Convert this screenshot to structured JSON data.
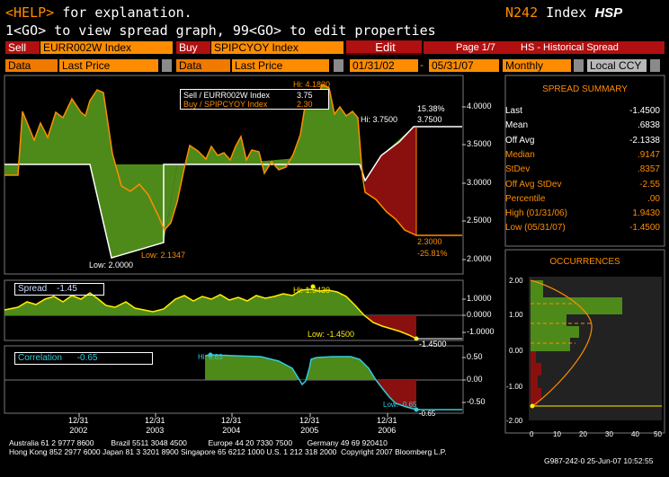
{
  "header": {
    "help_tag": "<HELP>",
    "help_text": "for explanation.",
    "ticker": "N242",
    "index_label": "Index",
    "function_code": "HSP",
    "instruction": "1<GO> to view spread graph, 99<GO> to edit properties"
  },
  "toolbar": {
    "sell_label": "Sell",
    "sell_value": "EURR002W Index",
    "buy_label": "Buy",
    "buy_value": "SPIPCYOY Index",
    "edit_label": "Edit",
    "page_label": "Page 1/7",
    "title": "HS - Historical Spread",
    "data_label_1": "Data",
    "data_value_1": "Last Price",
    "data_label_2": "Data",
    "data_value_2": "Last Price",
    "start_date": "01/31/02",
    "date_sep": "-",
    "end_date": "05/31/07",
    "periodicity": "Monthly",
    "currency": "Local CCY"
  },
  "price_panel": {
    "legend_sell": "Sell / EURR002W Index",
    "legend_sell_val": "3.75",
    "legend_buy": "Buy / SPIPCYOY Index",
    "legend_buy_val": "2.30",
    "hi_orange": "Hi: 4.1830",
    "hi_white": "Hi: 3.7500",
    "pct_white": "15.38%",
    "last_white": "3.7500",
    "low_white": "Low: 2.0000",
    "low_orange": "Low: 2.1347",
    "last_orange": "2.3000",
    "pct_orange": "-25.81%",
    "yticks": [
      "4.0000",
      "3.5000",
      "3.0000",
      "2.5000",
      "2.0000"
    ]
  },
  "spread_panel": {
    "label": "Spread",
    "value": "-1.45",
    "hi": "Hi: 1.9430",
    "low": "Low: -1.4500",
    "last": "-1.4500",
    "yticks": [
      "1.0000",
      "0.0000",
      "-1.0000"
    ]
  },
  "corr_panel": {
    "label": "Correlation",
    "value": "-0.65",
    "hi": "Hi: 0.63",
    "low": "Low: -0.65",
    "last": "-0.65",
    "yticks": [
      "0.50",
      "0.00",
      "-0.50"
    ]
  },
  "x_axis": [
    {
      "top": "12/31",
      "bottom": "2002"
    },
    {
      "top": "12/31",
      "bottom": "2003"
    },
    {
      "top": "12/31",
      "bottom": "2004"
    },
    {
      "top": "12/31",
      "bottom": "2005"
    },
    {
      "top": "12/31",
      "bottom": "2006"
    }
  ],
  "summary": {
    "title": "SPREAD SUMMARY",
    "rows": [
      {
        "k": "Last",
        "v": "-1.4500",
        "color": "#ffffff"
      },
      {
        "k": "Mean",
        "v": ".6838",
        "color": "#ffffff"
      },
      {
        "k": "Off Avg",
        "v": "-2.1338",
        "color": "#ffffff"
      },
      {
        "k": "Median",
        "v": ".9147",
        "color": "#ff8c00"
      },
      {
        "k": "StDev",
        "v": ".8357",
        "color": "#ff8c00"
      },
      {
        "k": "Off Avg StDev",
        "v": "-2.55",
        "color": "#ff8c00"
      },
      {
        "k": "Percentile",
        "v": ".00",
        "color": "#ff8c00"
      },
      {
        "k": "High (01/31/06)",
        "v": "1.9430",
        "color": "#ff8c00"
      },
      {
        "k": "Low (05/31/07)",
        "v": "-1.4500",
        "color": "#ff8c00"
      }
    ]
  },
  "occurrences": {
    "title": "OCCURRENCES",
    "yticks": [
      "2.00",
      "1.00",
      "0.00",
      "-1.00",
      "-2.00"
    ],
    "xticks": [
      "0",
      "10",
      "20",
      "30",
      "40",
      "50"
    ]
  },
  "footer": {
    "line1": "Australia 61 2 9777 8600        Brazil 5511 3048 4500          Europe 44 20 7330 7500       Germany 49 69 920410",
    "line2": "Hong Kong 852 2977 6000 Japan 81 3 3201 8900 Singapore 65 6212 1000 U.S. 1 212 318 2000  Copyright 2007 Bloomberg L.P.",
    "line3": "G987-242-0 25-Jun-07 10:52:55"
  },
  "colors": {
    "green_fill": "#4e8a1a",
    "red_fill": "#8a1010",
    "orange_line": "#ff8c00",
    "yellow_line": "#ffee00",
    "cyan_line": "#33ccdd",
    "panel_border": "#888888"
  }
}
